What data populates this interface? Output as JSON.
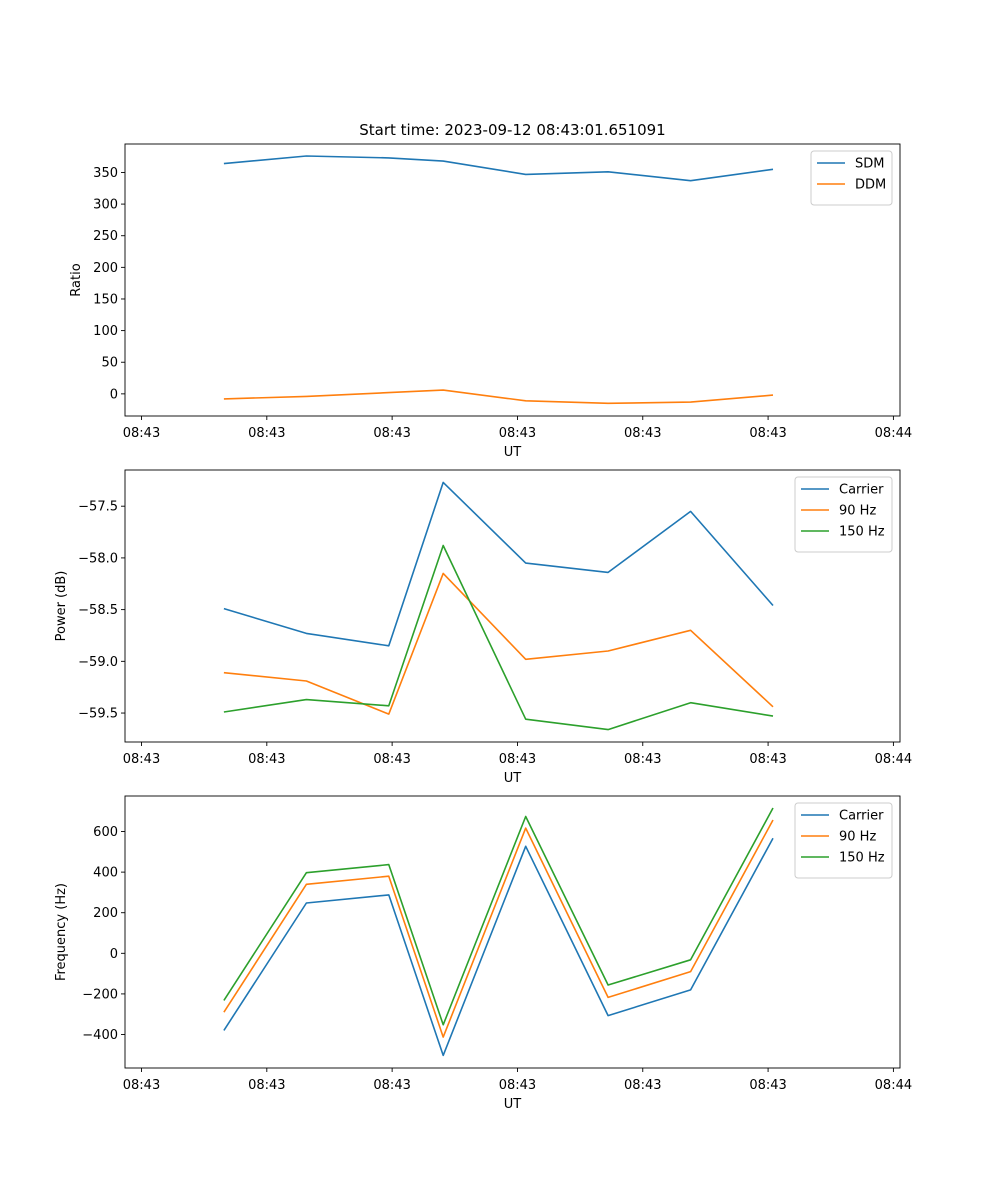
{
  "chart_data": [
    {
      "type": "line",
      "title": "Start time: 2023-09-12 08:43:01.651091",
      "xlabel": "UT",
      "ylabel": "Ratio",
      "x": [
        0.5,
        1.0,
        1.5,
        1.83,
        2.33,
        2.83,
        3.33,
        3.83
      ],
      "xlim": [
        -0.1,
        4.6
      ],
      "x_ticks": [
        0,
        0.76,
        1.52,
        2.28,
        3.04,
        3.8,
        4.56
      ],
      "x_tick_labels": [
        "08:43",
        "08:43",
        "08:43",
        "08:43",
        "08:43",
        "08:43",
        "08:44"
      ],
      "ylim": [
        -35,
        395
      ],
      "y_ticks": [
        0,
        50,
        100,
        150,
        200,
        250,
        300,
        350
      ],
      "y_tick_labels": [
        "0",
        "50",
        "100",
        "150",
        "200",
        "250",
        "300",
        "350"
      ],
      "legend_position": "top-right",
      "series": [
        {
          "name": "SDM",
          "color": "#1f77b4",
          "values": [
            364,
            376,
            373,
            368,
            347,
            351,
            337,
            355
          ]
        },
        {
          "name": "DDM",
          "color": "#ff7f0e",
          "values": [
            -8,
            -4,
            2,
            6,
            -11,
            -15,
            -13,
            -2
          ]
        }
      ]
    },
    {
      "type": "line",
      "title": "",
      "xlabel": "UT",
      "ylabel": "Power (dB)",
      "x": [
        0.5,
        1.0,
        1.5,
        1.83,
        2.33,
        2.83,
        3.33,
        3.83
      ],
      "xlim": [
        -0.1,
        4.6
      ],
      "x_ticks": [
        0,
        0.76,
        1.52,
        2.28,
        3.04,
        3.8,
        4.56
      ],
      "x_tick_labels": [
        "08:43",
        "08:43",
        "08:43",
        "08:43",
        "08:43",
        "08:43",
        "08:44"
      ],
      "ylim": [
        -59.78,
        -57.15
      ],
      "y_ticks": [
        -59.5,
        -59.0,
        -58.5,
        -58.0,
        -57.5
      ],
      "y_tick_labels": [
        "−59.5",
        "−59.0",
        "−58.5",
        "−58.0",
        "−57.5"
      ],
      "legend_position": "top-right",
      "series": [
        {
          "name": "Carrier",
          "color": "#1f77b4",
          "values": [
            -58.49,
            -58.73,
            -58.85,
            -57.27,
            -58.05,
            -58.14,
            -57.55,
            -58.46
          ]
        },
        {
          "name": "90 Hz",
          "color": "#ff7f0e",
          "values": [
            -59.11,
            -59.19,
            -59.51,
            -58.15,
            -58.98,
            -58.9,
            -58.7,
            -59.44
          ]
        },
        {
          "name": "150 Hz",
          "color": "#2ca02c",
          "values": [
            -59.49,
            -59.37,
            -59.43,
            -57.88,
            -59.56,
            -59.66,
            -59.4,
            -59.53
          ]
        }
      ]
    },
    {
      "type": "line",
      "title": "",
      "xlabel": "UT",
      "ylabel": "Frequency (Hz)",
      "x": [
        0.5,
        1.0,
        1.5,
        1.83,
        2.33,
        2.83,
        3.33,
        3.83
      ],
      "xlim": [
        -0.1,
        4.6
      ],
      "x_ticks": [
        0,
        0.76,
        1.52,
        2.28,
        3.04,
        3.8,
        4.56
      ],
      "x_tick_labels": [
        "08:43",
        "08:43",
        "08:43",
        "08:43",
        "08:43",
        "08:43",
        "08:44"
      ],
      "ylim": [
        -565,
        775
      ],
      "y_ticks": [
        -400,
        -200,
        0,
        200,
        400,
        600
      ],
      "y_tick_labels": [
        "−400",
        "−200",
        "0",
        "200",
        "400",
        "600"
      ],
      "legend_position": "top-right",
      "series": [
        {
          "name": "Carrier",
          "color": "#1f77b4",
          "values": [
            -380,
            248,
            288,
            -503,
            527,
            -307,
            -180,
            567
          ]
        },
        {
          "name": "90 Hz",
          "color": "#ff7f0e",
          "values": [
            -290,
            340,
            380,
            -413,
            617,
            -217,
            -90,
            657
          ]
        },
        {
          "name": "150 Hz",
          "color": "#2ca02c",
          "values": [
            -232,
            397,
            437,
            -352,
            674,
            -156,
            -32,
            716
          ]
        }
      ]
    }
  ]
}
